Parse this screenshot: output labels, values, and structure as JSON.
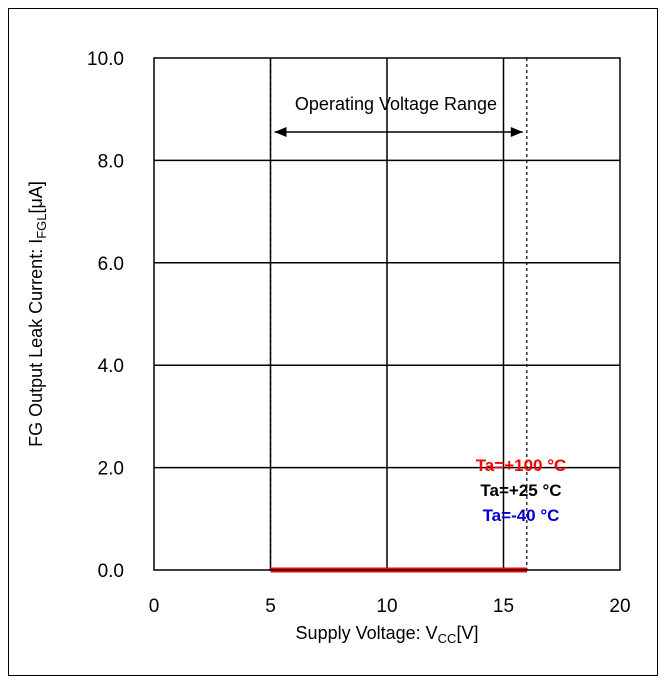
{
  "chart_data": {
    "type": "line",
    "title": "",
    "xlabel_main": "Supply Voltage: V",
    "xlabel_sub": "CC",
    "xlabel_tail": "[V]",
    "ylabel_main": "FG Output Leak Current: I",
    "ylabel_sub": "FGL",
    "ylabel_tail": "[μA]",
    "xlim": [
      0,
      20
    ],
    "ylim": [
      0.0,
      10.0
    ],
    "x_ticks": [
      "0",
      "5",
      "10",
      "15",
      "20"
    ],
    "y_ticks": [
      "0.0",
      "2.0",
      "4.0",
      "6.0",
      "8.0",
      "10.0"
    ],
    "grid": true,
    "legend_position": "bottom-right",
    "operating_range": {
      "label": "Operating Voltage Range",
      "from": 5,
      "to": 16
    },
    "series": [
      {
        "name": "Ta=+100 °C",
        "color": "#ff0000",
        "x": [
          5,
          16
        ],
        "y": [
          0.0,
          0.0
        ]
      },
      {
        "name": "Ta=+25 °C",
        "color": "#000000",
        "x": [
          5,
          16
        ],
        "y": [
          0.0,
          0.0
        ]
      },
      {
        "name": "Ta=-40 °C",
        "color": "#0000cc",
        "x": [
          5,
          16
        ],
        "y": [
          0.0,
          0.0
        ]
      }
    ]
  }
}
